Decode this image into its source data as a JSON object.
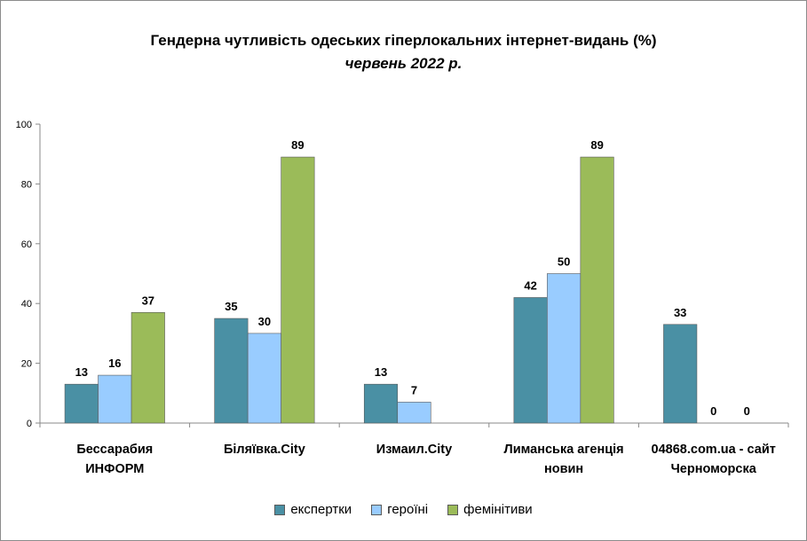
{
  "chart_data": {
    "type": "bar",
    "title": "Гендерна чутливість одеських гіперлокальних  інтернет-видань (%)",
    "subtitle": "червень 2022 р.",
    "categories": [
      [
        "Бессарабия",
        "ИНФОРМ"
      ],
      [
        "Біляївка.City"
      ],
      [
        "Измаил.City"
      ],
      [
        "Лиманська агенція",
        "новин"
      ],
      [
        "04868.com.ua - сайт",
        "Черноморска"
      ]
    ],
    "series": [
      {
        "name": "експертки",
        "color": "#4a90a4",
        "values": [
          13,
          35,
          13,
          42,
          33
        ]
      },
      {
        "name": "героїні",
        "color": "#99ccff",
        "values": [
          16,
          30,
          7,
          50,
          0
        ]
      },
      {
        "name": "фемінітиви",
        "color": "#9bbb59",
        "values": [
          37,
          89,
          null,
          89,
          0
        ]
      }
    ],
    "ylim": [
      0,
      100
    ],
    "yticks": [
      0,
      20,
      40,
      60,
      80,
      100
    ],
    "grid": false,
    "legend_position": "bottom"
  }
}
